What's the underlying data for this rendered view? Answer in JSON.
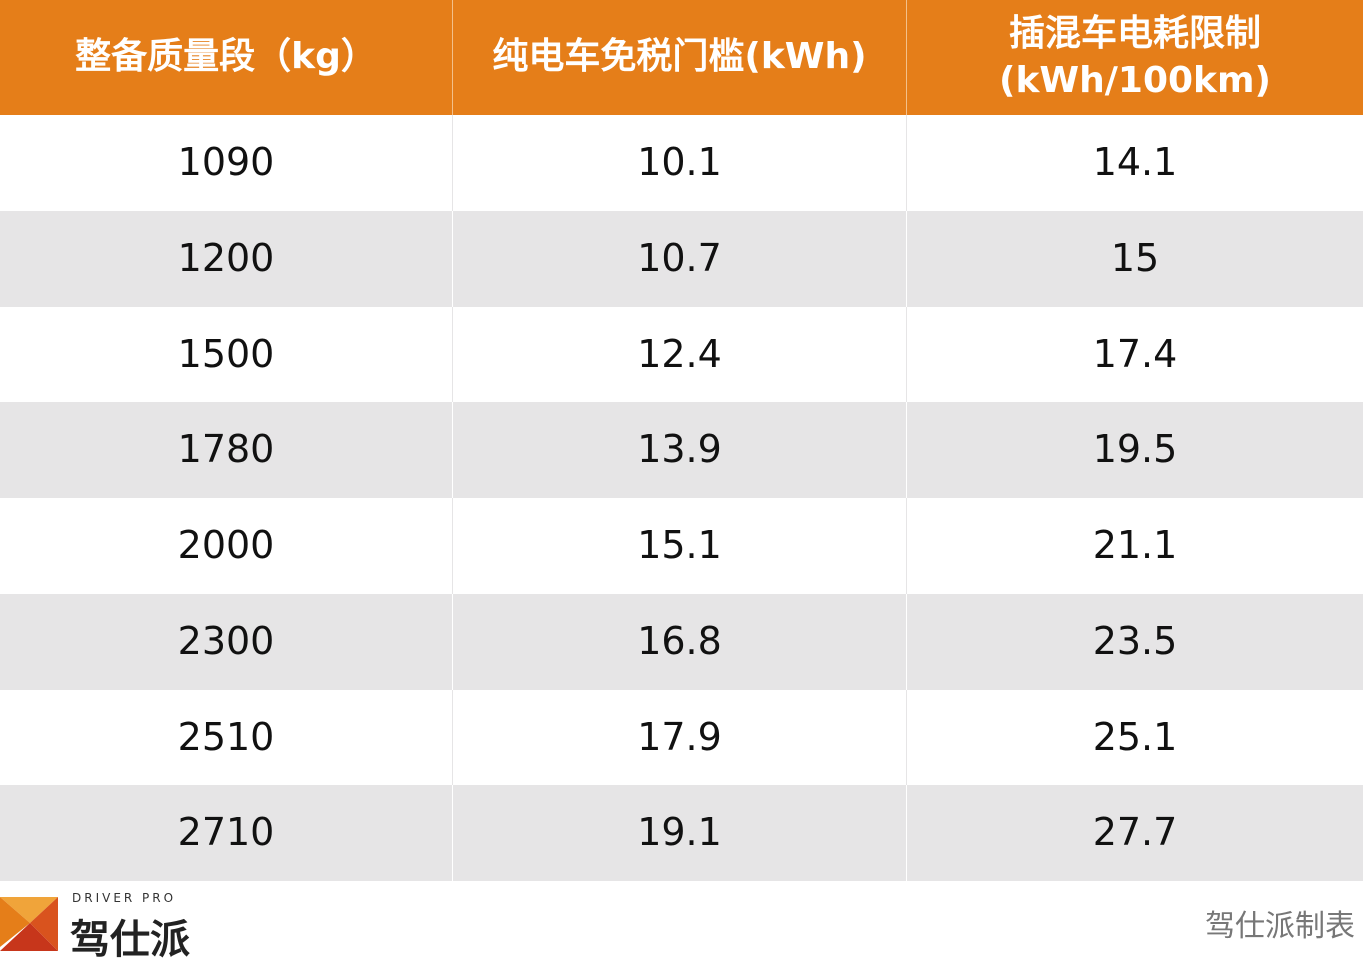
{
  "table": {
    "header": [
      [
        "整备质量段（kg）"
      ],
      [
        "纯电车免税门槛(kWh)"
      ],
      [
        "插混车电耗限制",
        "(kWh/100km)"
      ]
    ],
    "rows": [
      [
        1090,
        10.1,
        14.1
      ],
      [
        1200,
        10.7,
        15
      ],
      [
        1500,
        12.4,
        17.4
      ],
      [
        1780,
        13.9,
        19.5
      ],
      [
        2000,
        15.1,
        21.1
      ],
      [
        2300,
        16.8,
        23.5
      ],
      [
        2510,
        17.9,
        25.1
      ],
      [
        2710,
        19.1,
        27.7
      ]
    ]
  },
  "logo": {
    "tagline": "DRIVER PRO",
    "name": "驾仕派"
  },
  "footer": {
    "credit": "驾仕派制表"
  }
}
